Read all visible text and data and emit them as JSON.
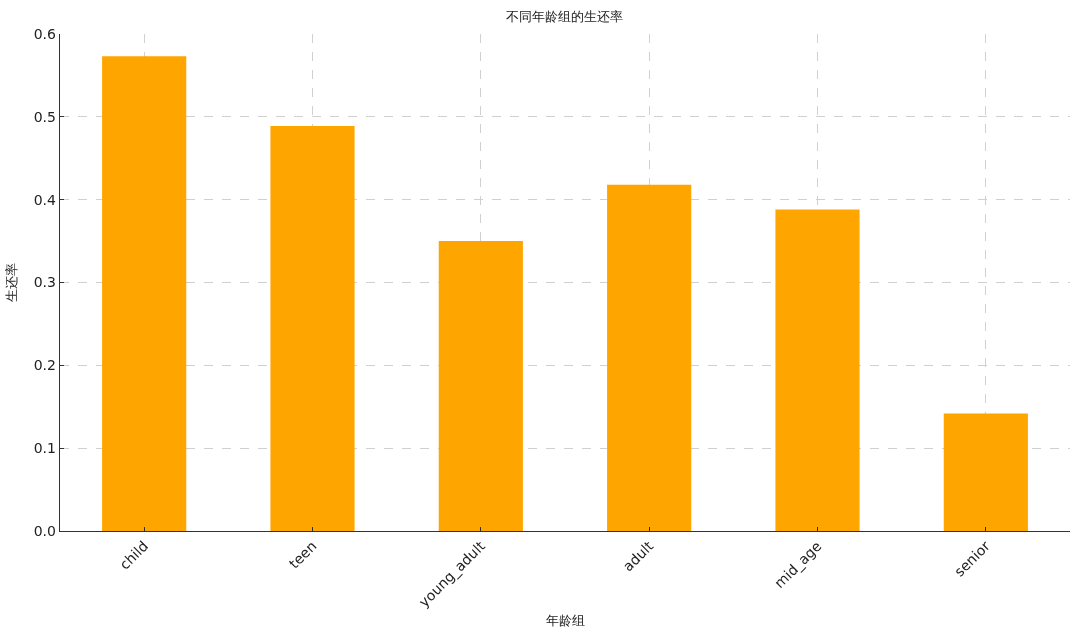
{
  "chart_data": {
    "type": "bar",
    "title": "不同年龄组的生还率",
    "xlabel": "年龄组",
    "ylabel": "生还率",
    "categories": [
      "child",
      "teen",
      "young_adult",
      "adult",
      "mid_age",
      "senior"
    ],
    "values": [
      0.573,
      0.489,
      0.35,
      0.418,
      0.388,
      0.142
    ],
    "color": "#ffa500",
    "ylim": [
      0,
      0.6
    ],
    "yticks": [
      {
        "value": 0,
        "label": "0.0"
      },
      0.1,
      0.2,
      0.3,
      0.4,
      0.5,
      0.6
    ],
    "grid": true
  }
}
